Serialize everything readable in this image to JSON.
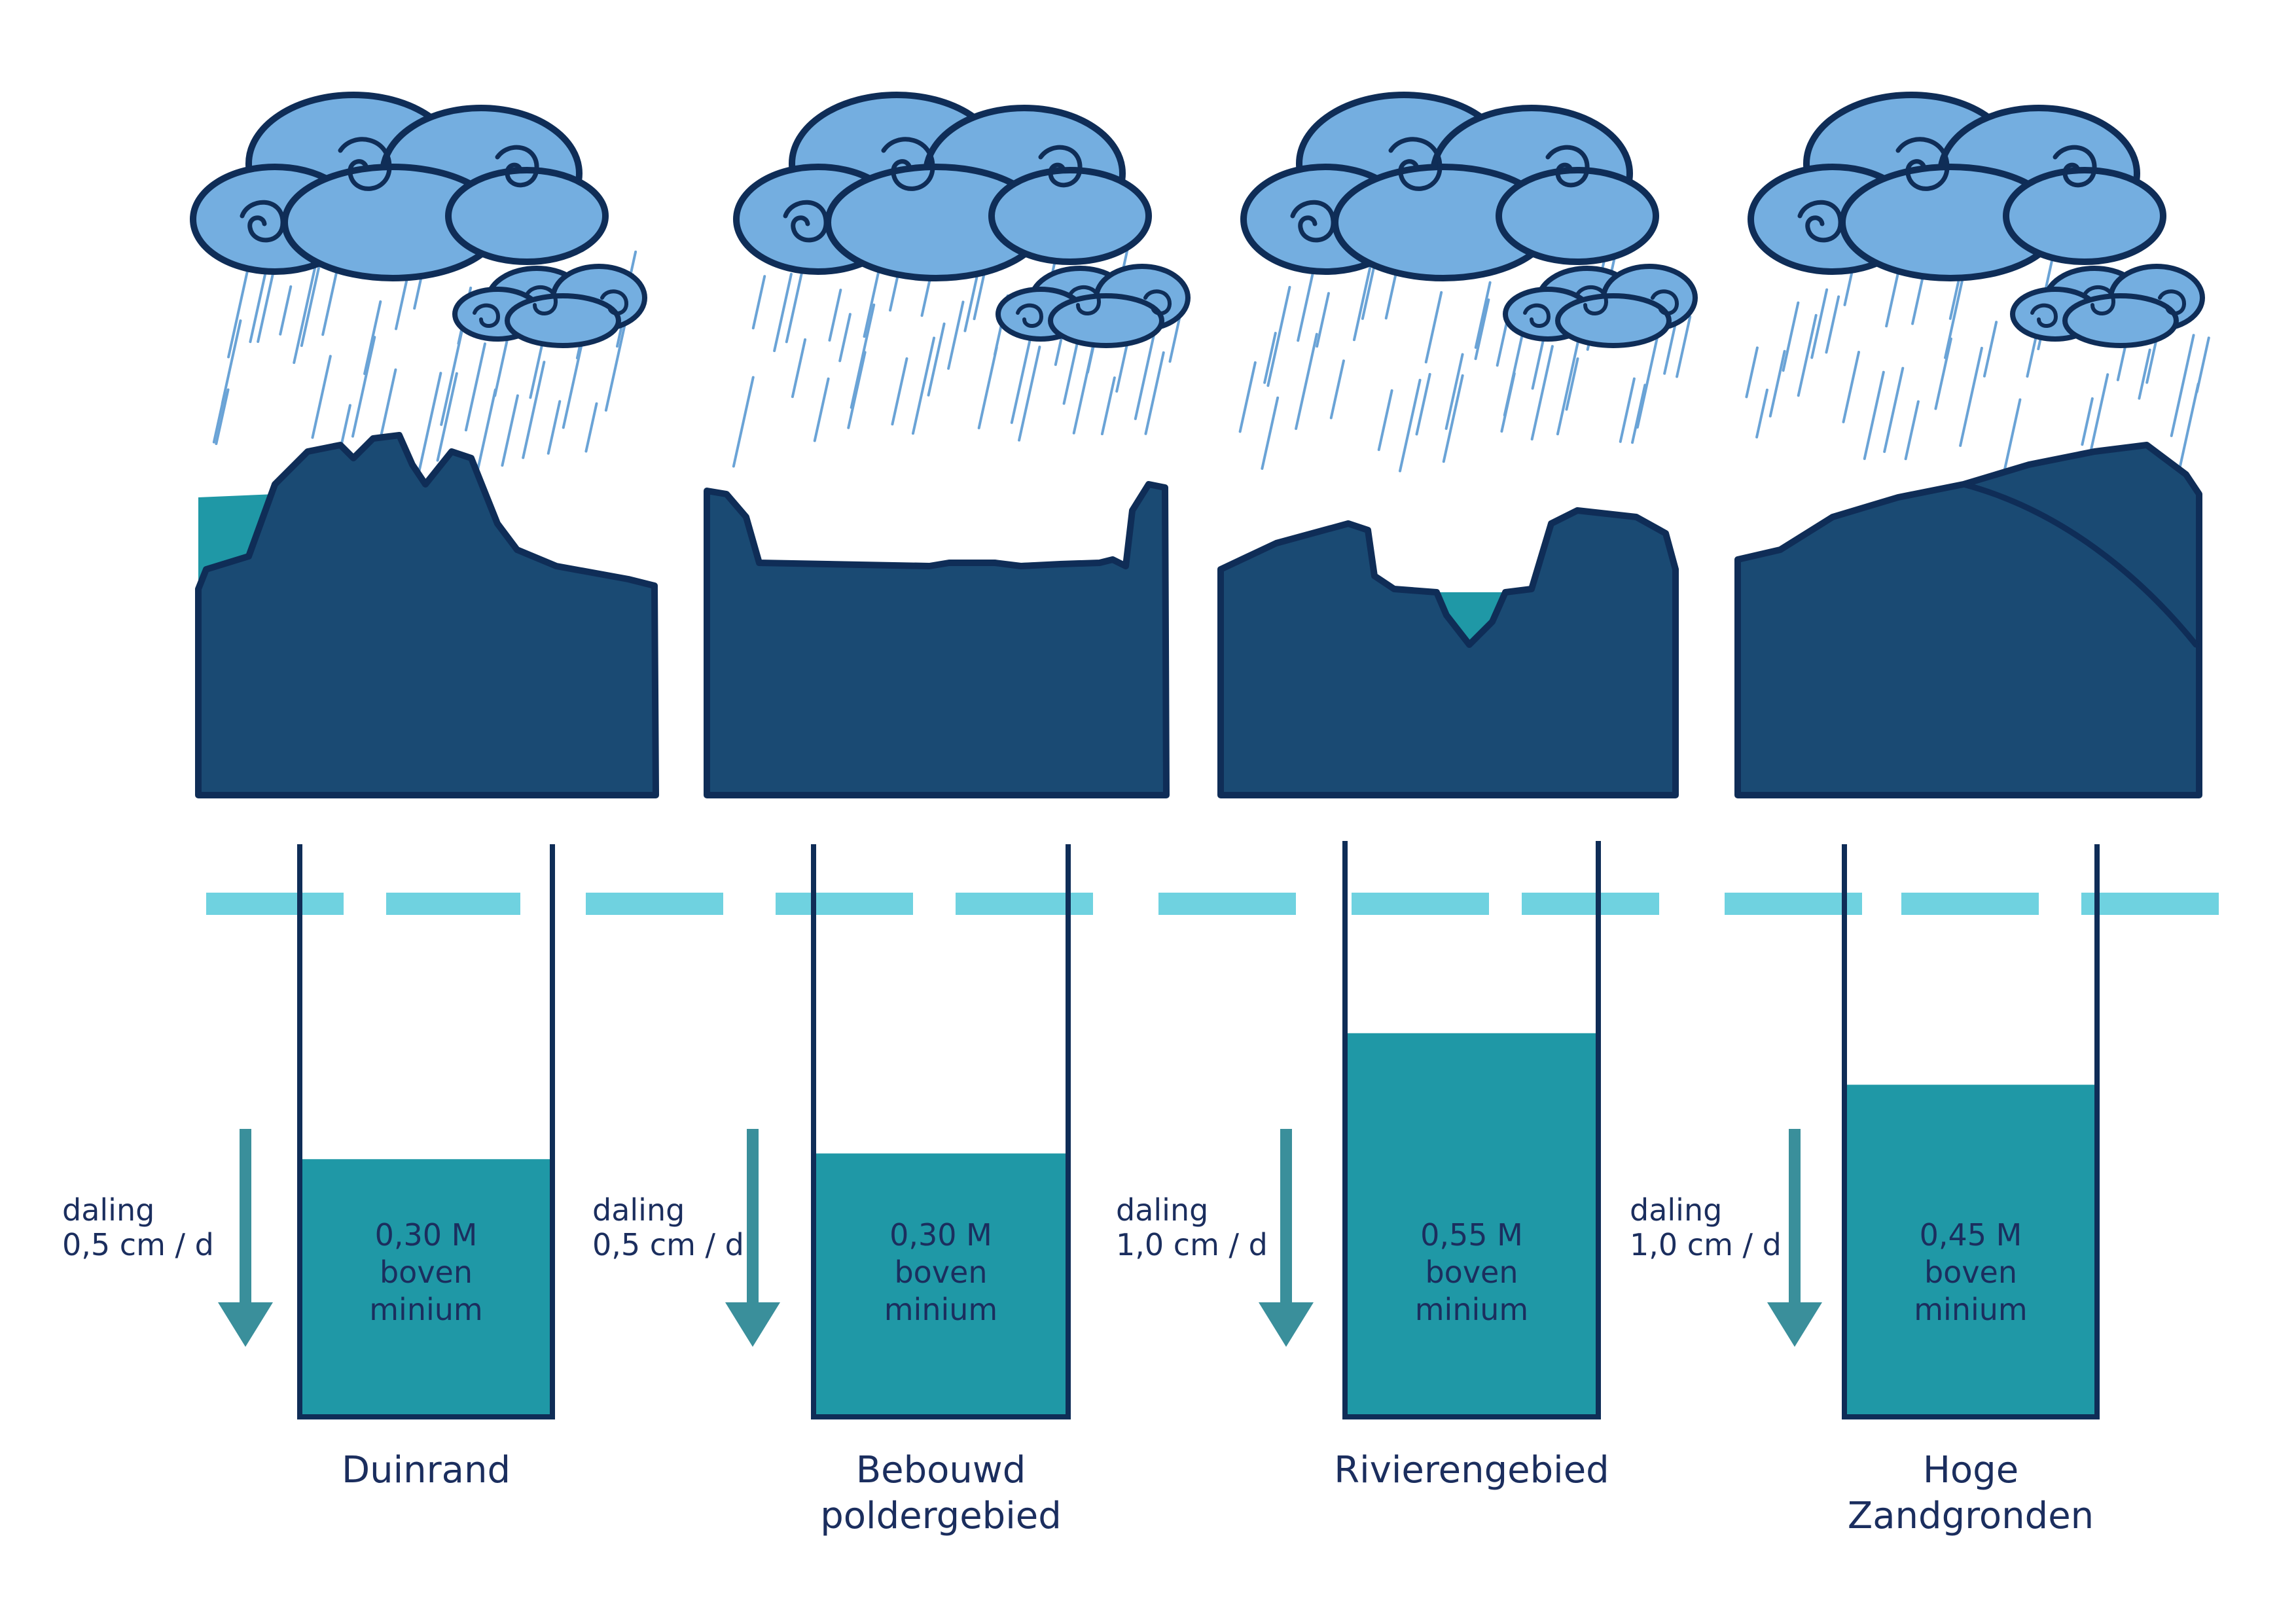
{
  "colors": {
    "land": "#1a4a73",
    "outline": "#0f2d57",
    "water": "#1f98a6",
    "cloud": "#74aee0",
    "rain": "#6aa3d6",
    "dash": "#6fd2e0",
    "arrow": "#3a8f9b",
    "text": "#1b2e5e"
  },
  "panels": [
    {
      "name": "Duinrand",
      "line1": "Duinrand",
      "line2": "",
      "drop_label": "daling",
      "drop_rate": "0,5 cm / d",
      "level_value": "0,30 M",
      "level_word1": "boven",
      "level_word2": "minium",
      "fill_fraction": 0.45
    },
    {
      "name": "Bebouwd poldergebied",
      "line1": "Bebouwd",
      "line2": "poldergebied",
      "drop_label": "daling",
      "drop_rate": "0,5 cm / d",
      "level_value": "0,30 M",
      "level_word1": "boven",
      "level_word2": "minium",
      "fill_fraction": 0.46
    },
    {
      "name": "Rivierengebied",
      "line1": "Rivierengebied",
      "line2": "",
      "drop_label": "daling",
      "drop_rate": "1,0 cm / d",
      "level_value": "0,55 M",
      "level_word1": "boven",
      "level_word2": "minium",
      "fill_fraction": 0.67
    },
    {
      "name": "Hoge Zandgronden",
      "line1": "Hoge",
      "line2": "Zandgronden",
      "drop_label": "daling",
      "drop_rate": "1,0 cm / d",
      "level_value": "0,45 M",
      "level_word1": "boven",
      "level_word2": "minium",
      "fill_fraction": 0.58
    }
  ]
}
